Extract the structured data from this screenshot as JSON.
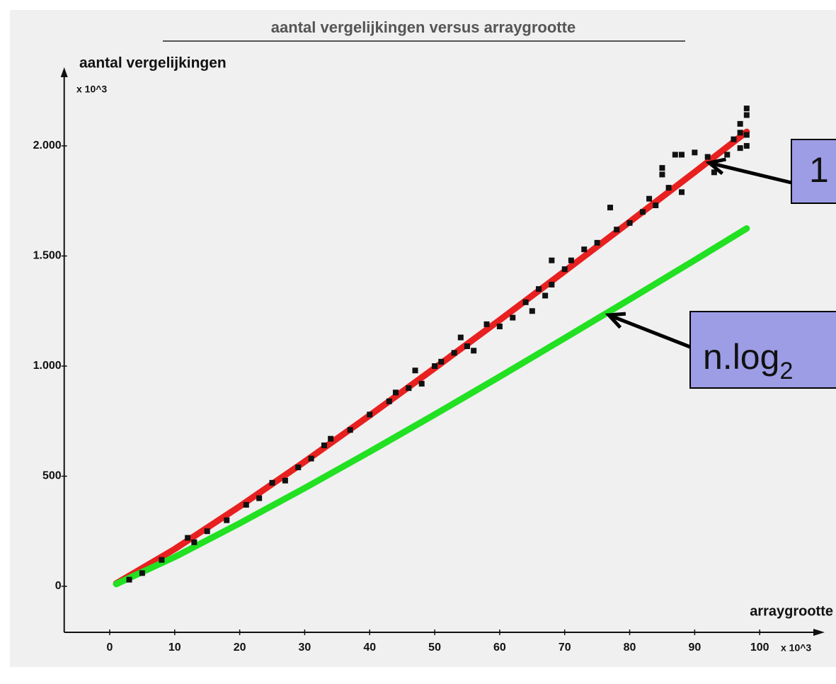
{
  "chart_data": {
    "type": "scatter",
    "title": "aantal vergelijkingen versus arraygrootte",
    "ylabel": "aantal vergelijkingen",
    "yunit": "x 10^3",
    "xlabel": "arraygrootte",
    "xunit": "x 10^3",
    "xlim": [
      -7,
      110
    ],
    "ylim": [
      -209,
      2357
    ],
    "xticks": [
      0,
      10,
      20,
      30,
      40,
      50,
      60,
      70,
      80,
      90,
      100
    ],
    "yticks": [
      0,
      500,
      {
        "value": 1000,
        "label": "1.000"
      },
      {
        "value": 1500,
        "label": "1.500"
      },
      {
        "value": 2000,
        "label": "2.000"
      }
    ],
    "points": {
      "color": "#111111",
      "x": [
        3,
        5,
        8,
        12,
        13,
        15,
        18,
        21,
        23,
        25,
        27,
        29,
        31,
        33,
        34,
        37,
        40,
        43,
        44,
        46,
        47,
        48,
        50,
        51,
        53,
        54,
        55,
        56,
        58,
        60,
        62,
        64,
        65,
        66,
        67,
        68,
        68,
        70,
        71,
        73,
        75,
        77,
        78,
        80,
        82,
        83,
        84,
        85,
        85,
        86,
        87,
        88,
        88,
        90,
        92,
        93,
        95,
        96,
        97,
        97,
        98,
        98,
        98,
        98,
        97
      ],
      "values": [
        30,
        60,
        120,
        220,
        200,
        250,
        300,
        370,
        400,
        470,
        480,
        540,
        580,
        640,
        670,
        710,
        780,
        840,
        880,
        900,
        980,
        920,
        1000,
        1020,
        1060,
        1130,
        1090,
        1070,
        1190,
        1180,
        1220,
        1290,
        1250,
        1350,
        1320,
        1480,
        1370,
        1440,
        1480,
        1530,
        1560,
        1720,
        1620,
        1650,
        1700,
        1760,
        1730,
        1900,
        1870,
        1810,
        1960,
        1960,
        1790,
        1970,
        1950,
        1880,
        1960,
        2030,
        2060,
        1990,
        2140,
        2170,
        2050,
        2000,
        2100
      ]
    },
    "lines": [
      {
        "color": "#e82020",
        "x": [
          1,
          10,
          20,
          30,
          40,
          50,
          60,
          70,
          80,
          90,
          98
        ],
        "values": [
          13,
          169,
          363,
          566,
          776,
          991,
          1209,
          1431,
          1655,
          1881,
          2064
        ]
      },
      {
        "color": "#22e022",
        "x": [
          1,
          10,
          20,
          30,
          40,
          50,
          60,
          70,
          80,
          90,
          98
        ],
        "values": [
          10,
          133,
          286,
          446,
          611,
          780,
          952,
          1127,
          1303,
          1481,
          1625
        ]
      }
    ],
    "annotations": [
      {
        "text": "1"
      },
      {
        "text": "n.log",
        "sub": "2"
      }
    ]
  }
}
